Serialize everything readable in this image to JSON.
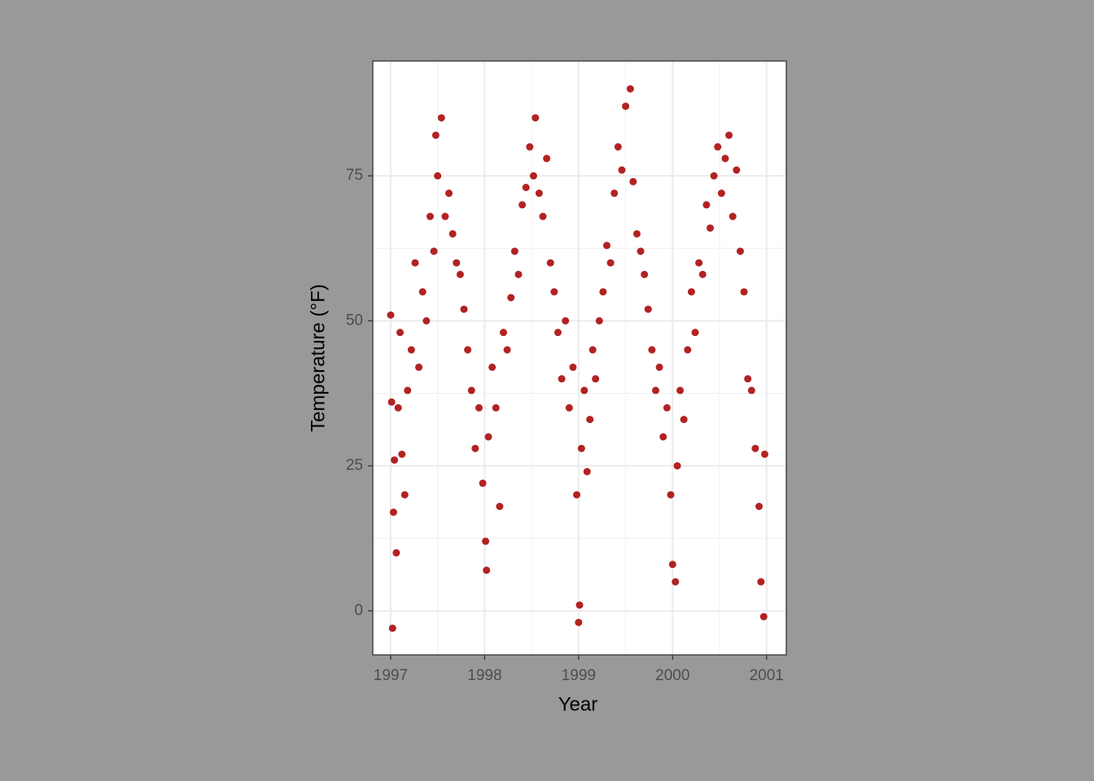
{
  "chart_data": {
    "type": "scatter",
    "x_label": "Year",
    "y_label": "Temperature (°F)",
    "color": "#b22222",
    "grid": true,
    "xlim": [
      1996.81,
      2001.21
    ],
    "xticks": [
      1997,
      1998,
      1999,
      2000,
      2001
    ],
    "ylim": [
      -7.6,
      94.8
    ],
    "yticks": [
      0,
      25,
      50,
      75
    ],
    "x": [
      1997.0,
      1997.01,
      1997.02,
      1997.03,
      1997.04,
      1997.06,
      1997.08,
      1997.1,
      1997.12,
      1997.15,
      1997.18,
      1997.22,
      1997.26,
      1997.3,
      1997.34,
      1997.38,
      1997.42,
      1997.46,
      1997.48,
      1997.5,
      1997.54,
      1997.58,
      1997.62,
      1997.66,
      1997.7,
      1997.74,
      1997.78,
      1997.82,
      1997.86,
      1997.9,
      1997.94,
      1997.98,
      1998.01,
      1998.02,
      1998.04,
      1998.08,
      1998.12,
      1998.16,
      1998.2,
      1998.24,
      1998.28,
      1998.32,
      1998.36,
      1998.4,
      1998.44,
      1998.48,
      1998.52,
      1998.54,
      1998.58,
      1998.62,
      1998.66,
      1998.7,
      1998.74,
      1998.78,
      1998.82,
      1998.86,
      1998.9,
      1998.94,
      1998.98,
      1999.0,
      1999.01,
      1999.03,
      1999.06,
      1999.09,
      1999.12,
      1999.15,
      1999.18,
      1999.22,
      1999.26,
      1999.3,
      1999.34,
      1999.38,
      1999.42,
      1999.46,
      1999.5,
      1999.55,
      1999.58,
      1999.62,
      1999.66,
      1999.7,
      1999.74,
      1999.78,
      1999.82,
      1999.86,
      1999.9,
      1999.94,
      1999.98,
      2000.0,
      2000.03,
      2000.05,
      2000.08,
      2000.12,
      2000.16,
      2000.2,
      2000.24,
      2000.28,
      2000.32,
      2000.36,
      2000.4,
      2000.44,
      2000.48,
      2000.52,
      2000.56,
      2000.6,
      2000.64,
      2000.68,
      2000.72,
      2000.76,
      2000.8,
      2000.84,
      2000.88,
      2000.92,
      2000.94,
      2000.97,
      2000.98
    ],
    "y": [
      51,
      36,
      -3,
      17,
      26,
      10,
      35,
      48,
      27,
      20,
      38,
      45,
      60,
      42,
      55,
      50,
      68,
      62,
      82,
      75,
      85,
      68,
      72,
      65,
      60,
      58,
      52,
      45,
      38,
      28,
      35,
      22,
      12,
      7,
      30,
      42,
      35,
      18,
      48,
      45,
      54,
      62,
      58,
      70,
      73,
      80,
      75,
      85,
      72,
      68,
      78,
      60,
      55,
      48,
      40,
      50,
      35,
      42,
      20,
      -2,
      1,
      28,
      38,
      24,
      33,
      45,
      40,
      50,
      55,
      63,
      60,
      72,
      80,
      76,
      87,
      90,
      74,
      65,
      62,
      58,
      52,
      45,
      38,
      42,
      30,
      35,
      20,
      8,
      5,
      25,
      38,
      33,
      45,
      55,
      48,
      60,
      58,
      70,
      66,
      75,
      80,
      72,
      78,
      82,
      68,
      76,
      62,
      55,
      40,
      38,
      28,
      18,
      5,
      -1,
      27
    ]
  }
}
